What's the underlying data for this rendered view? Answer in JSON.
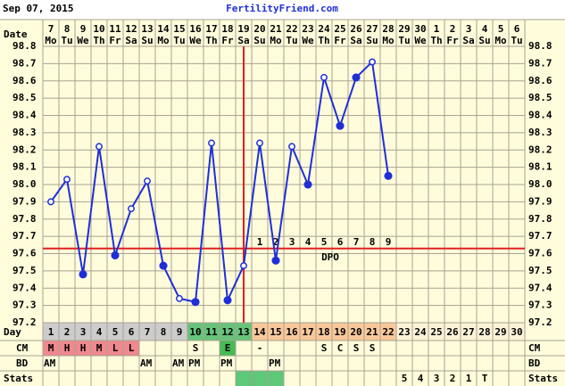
{
  "header": {
    "date": "Sep 07, 2015",
    "site": "FertilityFriend.com"
  },
  "chart_data": {
    "type": "line",
    "date_label": "Date",
    "row_labels": {
      "day": "Day",
      "cm": "CM",
      "bd": "BD",
      "stats": "Stats"
    },
    "categories": [
      "1",
      "2",
      "3",
      "4",
      "5",
      "6",
      "7",
      "8",
      "9",
      "10",
      "11",
      "12",
      "13",
      "14",
      "15",
      "16",
      "17",
      "18",
      "19",
      "20",
      "21",
      "22",
      "23",
      "24",
      "25",
      "26",
      "27",
      "28",
      "29",
      "30"
    ],
    "dates": [
      "7",
      "8",
      "9",
      "10",
      "11",
      "12",
      "13",
      "14",
      "15",
      "16",
      "17",
      "18",
      "19",
      "20",
      "21",
      "22",
      "23",
      "24",
      "25",
      "26",
      "27",
      "28",
      "29",
      "30",
      "1",
      "2",
      "3",
      "4",
      "5",
      "6"
    ],
    "weekdays": [
      "Mo",
      "Tu",
      "We",
      "Th",
      "Fr",
      "Sa",
      "Su",
      "Mo",
      "Tu",
      "We",
      "Th",
      "Fr",
      "Sa",
      "Su",
      "Mo",
      "Tu",
      "We",
      "Th",
      "Fr",
      "Sa",
      "Su",
      "Mo",
      "Tu",
      "We",
      "Th",
      "Fr",
      "Sa",
      "Su",
      "Mo",
      "Tu"
    ],
    "series": [
      {
        "color": "#1f2fd8",
        "values": [
          97.9,
          98.03,
          97.48,
          98.22,
          97.59,
          97.86,
          98.02,
          97.53,
          97.34,
          97.32,
          98.24,
          97.33,
          97.53,
          98.24,
          97.56,
          98.22,
          98.0,
          98.62,
          98.34,
          98.62,
          98.71,
          98.05,
          null,
          null,
          null,
          null,
          null,
          null,
          null,
          null
        ],
        "open_markers": [
          true,
          true,
          false,
          true,
          false,
          true,
          true,
          false,
          true,
          false,
          true,
          false,
          true,
          true,
          false,
          true,
          false,
          true,
          false,
          false,
          true,
          false,
          null,
          null,
          null,
          null,
          null,
          null,
          null,
          null
        ]
      }
    ],
    "ylim": [
      97.2,
      98.8
    ],
    "yticks": [
      97.2,
      97.3,
      97.4,
      97.5,
      97.6,
      97.7,
      97.8,
      97.9,
      {
        "value": 98,
        "label": "98.0"
      },
      98.1,
      98.2,
      98.3,
      98.4,
      98.5,
      98.6,
      98.7,
      98.8
    ],
    "grid": true,
    "coverline": 97.63,
    "coverline_color": "#e02020",
    "ovulation_day": 13,
    "dpo_text": "DPO",
    "dpo": [
      null,
      null,
      null,
      null,
      null,
      null,
      null,
      null,
      null,
      null,
      null,
      null,
      null,
      "1",
      "2",
      "3",
      "4",
      "5",
      "6",
      "7",
      "8",
      "9",
      null,
      null,
      null,
      null,
      null,
      null,
      null,
      null
    ],
    "day_colors": [
      "#cccccc",
      "#cccccc",
      "#cccccc",
      "#cccccc",
      "#cccccc",
      "#cccccc",
      "#cccccc",
      "#cccccc",
      "#cccccc",
      "#66c47a",
      "#66c47a",
      "#66c47a",
      "#66c47a",
      "#f8c89a",
      "#f8c89a",
      "#f8c89a",
      "#f8c89a",
      "#f8c89a",
      "#f8c89a",
      "#f8c89a",
      "#f8c89a",
      "#f8c89a",
      "#fcf3d8",
      "#fcf3d8",
      "#fcf3d8",
      "#fcf3d8",
      "#fcf3d8",
      "#fcf3d8",
      "#fcf3d8",
      "#fcf3d8"
    ],
    "cm": [
      "M",
      "H",
      "H",
      "M",
      "L",
      "L",
      null,
      null,
      null,
      "S",
      null,
      "E",
      null,
      "-",
      null,
      null,
      null,
      "S",
      "C",
      "S",
      "S",
      null,
      null,
      null,
      null,
      null,
      null,
      null,
      null,
      null
    ],
    "cm_colors": [
      "#f08890",
      "#f08890",
      "#f08890",
      "#f08890",
      "#f08890",
      "#f08890",
      null,
      null,
      null,
      null,
      null,
      "#44bb55",
      null,
      null,
      null,
      null,
      null,
      null,
      null,
      null,
      null,
      null,
      null,
      null,
      null,
      null,
      null,
      null,
      null,
      null
    ],
    "bd": [
      "AM",
      null,
      null,
      null,
      null,
      null,
      "AM",
      null,
      "AM",
      "PM",
      null,
      "PM",
      null,
      null,
      "PM",
      null,
      null,
      null,
      null,
      null,
      null,
      null,
      null,
      null,
      null,
      null,
      null,
      null,
      null,
      null
    ],
    "stats": [
      null,
      null,
      null,
      null,
      null,
      null,
      null,
      null,
      null,
      null,
      null,
      null,
      null,
      null,
      null,
      null,
      null,
      null,
      null,
      null,
      null,
      null,
      "5",
      "4",
      "3",
      "2",
      "1",
      "T",
      null,
      null
    ],
    "stats_colors": [
      null,
      null,
      null,
      null,
      null,
      null,
      null,
      null,
      null,
      null,
      null,
      null,
      "#5cc878",
      "#5cc878",
      "#5cc878",
      null,
      null,
      null,
      null,
      null,
      null,
      null,
      null,
      null,
      null,
      null,
      null,
      null,
      null,
      null
    ]
  }
}
